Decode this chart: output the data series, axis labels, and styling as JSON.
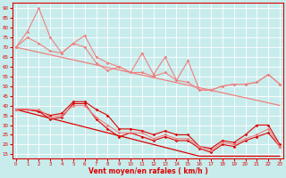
{
  "x": [
    0,
    1,
    2,
    3,
    4,
    5,
    6,
    7,
    8,
    9,
    10,
    11,
    12,
    13,
    14,
    15,
    16,
    17,
    18,
    19,
    20,
    21,
    22,
    23
  ],
  "upper_line1": [
    70,
    75,
    72,
    68,
    67,
    72,
    76,
    65,
    62,
    60,
    57,
    57,
    55,
    57,
    53,
    52,
    48,
    48,
    50,
    51,
    51,
    52,
    56,
    51
  ],
  "upper_line2": [
    70,
    78,
    90,
    75,
    67,
    72,
    70,
    62,
    58,
    60,
    57,
    67,
    56,
    65,
    53,
    63,
    48,
    48,
    50,
    51,
    51,
    52,
    56,
    51
  ],
  "upper_trend": [
    70,
    68.7,
    67.4,
    66.1,
    64.8,
    63.5,
    62.2,
    60.9,
    59.6,
    58.3,
    57.0,
    55.7,
    54.4,
    53.1,
    51.8,
    50.5,
    49.2,
    47.9,
    46.6,
    45.3,
    44.0,
    42.7,
    41.4,
    40.1
  ],
  "lower_line1": [
    38,
    38,
    37,
    35,
    36,
    42,
    42,
    38,
    35,
    28,
    28,
    27,
    25,
    27,
    25,
    25,
    19,
    18,
    22,
    21,
    25,
    30,
    30,
    20
  ],
  "lower_line2": [
    38,
    38,
    37,
    33,
    34,
    41,
    41,
    33,
    28,
    24,
    26,
    24,
    22,
    24,
    22,
    22,
    18,
    16,
    20,
    19,
    22,
    24,
    26,
    19
  ],
  "lower_line3": [
    38,
    38,
    38,
    34,
    35,
    40,
    40,
    34,
    30,
    26,
    26,
    26,
    23,
    25,
    23,
    23,
    19,
    17,
    21,
    20,
    23,
    25,
    28,
    19
  ],
  "lower_trend": [
    38,
    36.5,
    35.0,
    33.5,
    32.0,
    30.5,
    29.0,
    27.5,
    26.0,
    24.5,
    23.0,
    21.5,
    20.0,
    18.5,
    17.0,
    15.5,
    14.0,
    14.0,
    14.0,
    14.0,
    14.0,
    14.0,
    14.0,
    14.0
  ],
  "bg_color": "#c8ecec",
  "grid_color": "#b0d8d8",
  "lc_light": "#f08080",
  "lc_dark": "#dd0000",
  "xlabel": "Vent moyen/en rafales ( km/h )",
  "yticks": [
    15,
    20,
    25,
    30,
    35,
    40,
    45,
    50,
    55,
    60,
    65,
    70,
    75,
    80,
    85,
    90
  ],
  "xticks": [
    0,
    1,
    2,
    3,
    4,
    5,
    6,
    7,
    8,
    9,
    10,
    11,
    12,
    13,
    14,
    15,
    16,
    17,
    18,
    19,
    20,
    21,
    22,
    23
  ],
  "ylim": [
    13,
    93
  ],
  "xlim": [
    -0.3,
    23.3
  ]
}
